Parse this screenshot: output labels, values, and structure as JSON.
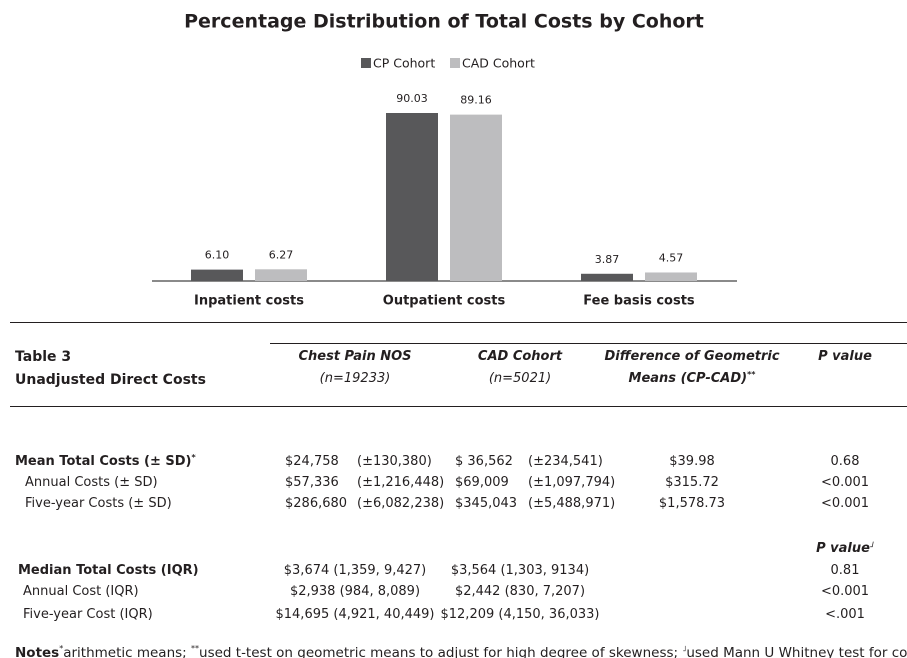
{
  "chart_data": {
    "type": "bar",
    "title": "Percentage Distribution of Total Costs by Cohort",
    "categories": [
      "Inpatient costs",
      "Outpatient costs",
      "Fee basis costs"
    ],
    "series": [
      {
        "name": "CP Cohort",
        "color": "#58585a",
        "values": [
          6.1,
          90.03,
          3.87
        ],
        "value_labels": [
          "6.10",
          "90.03",
          "3.87"
        ]
      },
      {
        "name": "CAD Cohort",
        "color": "#bdbdbf",
        "values": [
          6.27,
          89.16,
          4.57
        ]
      }
    ]
  },
  "table": {
    "label": "Table 3",
    "title": "Unadjusted Direct Costs",
    "columns": [
      {
        "lines": [
          "Chest Pain NOS",
          "(n=19233)"
        ]
      },
      {
        "lines": [
          "CAD Cohort",
          "(n=5021)"
        ]
      },
      {
        "lines": [
          "Difference of Geometric",
          "Means (CP-CAD)"
        ],
        "sup": "**"
      },
      {
        "lines": [
          "P value"
        ]
      }
    ],
    "sections": [
      {
        "rows": [
          {
            "label": "Mean Total Costs (± SD)",
            "label_sup": "*",
            "cp": [
              "$24,758",
              "(±130,380)"
            ],
            "cad": [
              "$ 36,562",
              "(±234,541)"
            ],
            "diff": "$39.98",
            "p": "0.68"
          },
          {
            "label": "Annual Costs (± SD)",
            "cp": [
              "$57,336",
              "(±1,216,448)"
            ],
            "cad": [
              "$69,009",
              "(±1,097,794)"
            ],
            "diff": "$315.72",
            "p": "<0.001"
          },
          {
            "label": "Five-year Costs (± SD)",
            "cp": [
              "$286,680",
              "(±6,082,238)"
            ],
            "cad": [
              "$345,043",
              "(±5,488,971)"
            ],
            "diff": "$1,578.73",
            "p": "<0.001"
          }
        ]
      },
      {
        "p_header": "P value",
        "p_header_sup": "˩",
        "rows": [
          {
            "label": "Median Total Costs (IQR)",
            "cp": [
              "$3,674 (1,359, 9,427)"
            ],
            "cad": [
              "$3,564 (1,303, 9134)"
            ],
            "p": "0.81"
          },
          {
            "label": "Annual Cost (IQR)",
            "cp": [
              "$2,938 (984, 8,089)"
            ],
            "cad": [
              "$2,442 (830, 7,207)"
            ],
            "p": "<0.001"
          },
          {
            "label": "Five-year Cost (IQR)",
            "cp": [
              "$14,695 (4,921, 40,449)"
            ],
            "cad": [
              "$12,209 (4,150, 36,033)"
            ],
            "p": "<.001"
          }
        ]
      }
    ],
    "notes": {
      "label": "Notes",
      "parts": [
        {
          "sup": "*",
          "text": "arithmetic means; "
        },
        {
          "sup": "**",
          "text": "used t-test on geometric means to adjust for high degree of skewness; "
        },
        {
          "sup": "˩",
          "text": "used Mann U Whitney test for comparison."
        }
      ]
    }
  }
}
